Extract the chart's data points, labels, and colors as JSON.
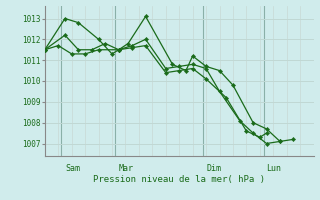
{
  "background_color": "#d0ecec",
  "grid_color_major": "#c8dcd8",
  "grid_color_minor": "#e0ecec",
  "line_color": "#1a6b1a",
  "marker_color": "#1a6b1a",
  "xlabel": "Pression niveau de la mer( hPa )",
  "ylim": [
    1006.4,
    1013.6
  ],
  "yticks": [
    1007,
    1008,
    1009,
    1010,
    1011,
    1012,
    1013
  ],
  "xlim": [
    0,
    20
  ],
  "xtick_labels": [
    "Sam",
    "Mar",
    "Dim",
    "Lun"
  ],
  "xtick_positions": [
    1.5,
    5.5,
    12.0,
    16.5
  ],
  "vline_positions": [
    1.2,
    5.2,
    11.8,
    16.3
  ],
  "num_minor_x": 20,
  "series": [
    {
      "x": [
        0.0,
        1.5,
        2.5,
        4.0,
        5.0,
        5.5,
        6.2,
        7.5,
        9.5,
        10.5,
        11.0,
        12.0,
        13.0,
        14.0,
        15.5,
        16.5,
        17.5,
        18.5
      ],
      "y": [
        1011.5,
        1013.0,
        1012.8,
        1012.0,
        1011.3,
        1011.5,
        1011.8,
        1013.1,
        1010.8,
        1010.5,
        1011.2,
        1010.7,
        1010.5,
        1009.8,
        1008.0,
        1007.7,
        1007.1,
        1007.2
      ]
    },
    {
      "x": [
        0.0,
        1.5,
        2.5,
        3.5,
        4.5,
        5.5,
        6.5,
        7.5,
        9.0,
        10.0,
        11.0,
        12.0,
        13.0,
        14.5,
        15.5,
        16.5,
        17.5
      ],
      "y": [
        1011.5,
        1012.2,
        1011.5,
        1011.5,
        1011.8,
        1011.5,
        1011.7,
        1012.0,
        1010.6,
        1010.7,
        1010.8,
        1010.6,
        1009.5,
        1008.1,
        1007.5,
        1007.0,
        1007.1
      ]
    },
    {
      "x": [
        0.0,
        1.0,
        2.0,
        3.0,
        4.0,
        5.5,
        6.5,
        7.5,
        9.0,
        10.0,
        11.0,
        12.0,
        13.5,
        15.0,
        16.0,
        16.5
      ],
      "y": [
        1011.5,
        1011.7,
        1011.3,
        1011.3,
        1011.5,
        1011.5,
        1011.6,
        1011.7,
        1010.4,
        1010.5,
        1010.6,
        1010.1,
        1009.2,
        1007.6,
        1007.3,
        1007.5
      ]
    }
  ]
}
